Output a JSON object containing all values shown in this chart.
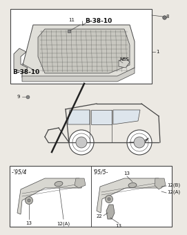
{
  "bg_color": "#ece9e3",
  "box_facecolor": "#f5f4f0",
  "line_color": "#444444",
  "text_color": "#111111",
  "labels": {
    "b3810_top": "B-38-10",
    "b3810_bot": "B-38-10",
    "nss": "NSS",
    "n11": "11",
    "n8": "8",
    "n1": "1",
    "n9": "9",
    "bl_title": "-’95/4",
    "br_title": "’95/5-",
    "n13_bl": "13",
    "n12a_bl": "12(A)",
    "n13_br1": "13",
    "n12b_br": "12(B)",
    "n12a_br": "12(A)",
    "n22_br": "22",
    "n13_br2": "13"
  },
  "fs": 5.0,
  "fs_bold": 6.5
}
